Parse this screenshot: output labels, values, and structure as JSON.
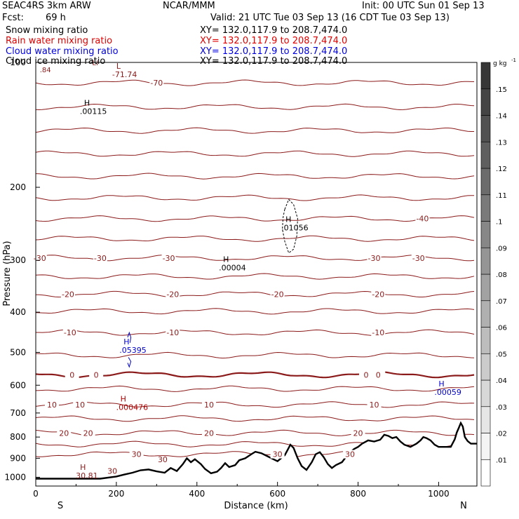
{
  "header": {
    "model": "SEAC4RS  3km ARW",
    "org": "NCAR/MMM",
    "init": "Init: 00 UTC Sun 01 Sep 13",
    "fcst_label": "Fcst:",
    "fcst_value": "69 h",
    "valid": "Valid: 21 UTC Tue 03 Sep 13 (16 CDT Tue 03 Sep 13)"
  },
  "fields": [
    {
      "name": "Snow mixing ratio",
      "xy": "XY= 132.0,117.9 to 208.7,474.0",
      "color": "#000000"
    },
    {
      "name": "Rain water mixing ratio",
      "xy": "XY= 132.0,117.9 to 208.7,474.0",
      "color": "#e00000"
    },
    {
      "name": "Cloud water mixing ratio",
      "xy": "XY= 132.0,117.9 to 208.7,474.0",
      "color": "#0000e0"
    },
    {
      "name": "Cloud ice mixing ratio",
      "xy": "XY= 132.0,117.9 to 208.7,474.0",
      "color": "#000000"
    }
  ],
  "chart_data": {
    "type": "vertical cross-section (contour + shaded)",
    "xlabel": "Distance (km)",
    "ylabel": "Pressure (hPa)",
    "xlim": [
      0,
      1095
    ],
    "ylim": [
      1050,
      100
    ],
    "yscale": "log",
    "x_ticks": [
      0,
      200,
      400,
      600,
      800,
      1000
    ],
    "y_ticks": [
      200,
      300,
      400,
      500,
      600,
      700,
      800,
      900,
      1000
    ],
    "y_top_label": "100",
    "endpoint_left": "S",
    "endpoint_right": "N",
    "colorbar": {
      "unit": "g kg",
      "unit_exp": "-1",
      "ticks": [
        ".01",
        ".02",
        ".03",
        ".04",
        ".05",
        ".06",
        ".07",
        ".08",
        ".09",
        ".1",
        ".11",
        ".12",
        ".13",
        ".14",
        ".15"
      ],
      "colors": [
        "#ffffff",
        "#f4f4f4",
        "#e6e6e6",
        "#d8d8d8",
        "#cbcbcb",
        "#bdbdbd",
        "#b0b0b0",
        "#a2a2a2",
        "#959595",
        "#878787",
        "#7a7a7a",
        "#6c6c6c",
        "#5f5f5f",
        "#515151",
        "#444444",
        "#373737"
      ]
    },
    "temperature_contour_color": "#8b1a1a",
    "temperature_contours": [
      {
        "value": -70,
        "p": 112,
        "labels": [
          {
            "x": 300,
            "text": "-70"
          }
        ]
      },
      {
        "value": -65,
        "p": 128,
        "labels": []
      },
      {
        "value": -60,
        "p": 146,
        "labels": []
      },
      {
        "value": -55,
        "p": 166,
        "labels": []
      },
      {
        "value": -50,
        "p": 188,
        "labels": []
      },
      {
        "value": -45,
        "p": 212,
        "labels": []
      },
      {
        "value": -40,
        "p": 238,
        "labels": [
          {
            "x": 960,
            "text": "-40"
          }
        ]
      },
      {
        "value": -35,
        "p": 266,
        "labels": []
      },
      {
        "value": -30,
        "p": 296,
        "labels": [
          {
            "x": 10,
            "text": "-30"
          },
          {
            "x": 160,
            "text": "-30"
          },
          {
            "x": 330,
            "text": "-30"
          },
          {
            "x": 840,
            "text": "-30"
          },
          {
            "x": 950,
            "text": "-30"
          }
        ]
      },
      {
        "value": -25,
        "p": 328,
        "labels": []
      },
      {
        "value": -20,
        "p": 362,
        "labels": [
          {
            "x": 80,
            "text": "-20"
          },
          {
            "x": 340,
            "text": "-20"
          },
          {
            "x": 600,
            "text": "-20"
          },
          {
            "x": 850,
            "text": "-20"
          }
        ]
      },
      {
        "value": -15,
        "p": 398,
        "labels": []
      },
      {
        "value": -10,
        "p": 448,
        "labels": [
          {
            "x": 85,
            "text": "-10"
          },
          {
            "x": 340,
            "text": "-10"
          },
          {
            "x": 850,
            "text": "-10"
          }
        ]
      },
      {
        "value": -5,
        "p": 508,
        "labels": []
      },
      {
        "value": 0,
        "p": 566,
        "labels": [
          {
            "x": 90,
            "text": "0"
          },
          {
            "x": 150,
            "text": "0"
          },
          {
            "x": 820,
            "text": "0"
          },
          {
            "x": 850,
            "text": "0"
          }
        ]
      },
      {
        "value": 5,
        "p": 612,
        "labels": []
      },
      {
        "value": 10,
        "p": 668,
        "labels": [
          {
            "x": 40,
            "text": "10"
          },
          {
            "x": 110,
            "text": "10"
          },
          {
            "x": 430,
            "text": "10"
          },
          {
            "x": 840,
            "text": "10"
          }
        ]
      },
      {
        "value": 15,
        "p": 722,
        "labels": []
      },
      {
        "value": 20,
        "p": 782,
        "labels": [
          {
            "x": 70,
            "text": "20"
          },
          {
            "x": 130,
            "text": "20"
          },
          {
            "x": 430,
            "text": "20"
          },
          {
            "x": 800,
            "text": "20"
          }
        ]
      },
      {
        "value": 25,
        "p": 832,
        "labels": []
      },
      {
        "value": 30,
        "p": 880,
        "labels": [
          {
            "x": 250,
            "text": "30"
          },
          {
            "x": 600,
            "text": "30"
          },
          {
            "x": 780,
            "text": "30"
          }
        ]
      }
    ],
    "extra_labels": [
      {
        "text": "30",
        "x": 315,
        "p": 905
      },
      {
        "text": "30",
        "x": 190,
        "p": 965
      }
    ],
    "markers": [
      {
        "letter": "H",
        "value": ".00115",
        "x": 120,
        "p": 130,
        "color": "#000000"
      },
      {
        "letter": "H",
        "value": ".01056",
        "x": 620,
        "p": 248,
        "color": "#000000"
      },
      {
        "letter": "H",
        "value": ".00004",
        "x": 465,
        "p": 310,
        "color": "#000000"
      },
      {
        "letter": "H",
        "value": ".05395",
        "x": 218,
        "p": 490,
        "color": "#0000d0"
      },
      {
        "letter": "H",
        "value": ".00059",
        "x": 1000,
        "p": 618,
        "color": "#0000d0"
      },
      {
        "letter": "H",
        "value": ".000476",
        "x": 210,
        "p": 672,
        "color": "#b00000"
      },
      {
        "letter": "H",
        "value": "30.81",
        "x": 110,
        "p": 983,
        "color": "#8b1a1a"
      },
      {
        "letter": "L",
        "value": "-71.74",
        "x": 200,
        "p": 106,
        "color": "#8b1a1a"
      }
    ],
    "top_strip_texts": [
      {
        "text": ".84",
        "x": 10,
        "p": 104
      },
      {
        "text": "LI",
        "x": 140,
        "p": 100
      }
    ],
    "terrain": {
      "color": "#000000",
      "points": [
        [
          0,
          1008
        ],
        [
          50,
          1008
        ],
        [
          100,
          1008
        ],
        [
          160,
          1008
        ],
        [
          200,
          996
        ],
        [
          220,
          985
        ],
        [
          240,
          975
        ],
        [
          260,
          962
        ],
        [
          280,
          958
        ],
        [
          300,
          968
        ],
        [
          320,
          975
        ],
        [
          335,
          950
        ],
        [
          350,
          966
        ],
        [
          365,
          930
        ],
        [
          375,
          900
        ],
        [
          385,
          920
        ],
        [
          395,
          905
        ],
        [
          410,
          930
        ],
        [
          420,
          955
        ],
        [
          435,
          978
        ],
        [
          450,
          970
        ],
        [
          460,
          950
        ],
        [
          470,
          925
        ],
        [
          480,
          945
        ],
        [
          495,
          935
        ],
        [
          505,
          910
        ],
        [
          520,
          900
        ],
        [
          535,
          880
        ],
        [
          545,
          868
        ],
        [
          560,
          875
        ],
        [
          575,
          890
        ],
        [
          590,
          905
        ],
        [
          600,
          915
        ],
        [
          610,
          898
        ],
        [
          618,
          885
        ],
        [
          625,
          860
        ],
        [
          632,
          835
        ],
        [
          640,
          850
        ],
        [
          650,
          900
        ],
        [
          660,
          940
        ],
        [
          672,
          960
        ],
        [
          685,
          920
        ],
        [
          695,
          880
        ],
        [
          705,
          870
        ],
        [
          715,
          895
        ],
        [
          725,
          930
        ],
        [
          735,
          950
        ],
        [
          745,
          935
        ],
        [
          760,
          920
        ],
        [
          775,
          880
        ],
        [
          790,
          855
        ],
        [
          800,
          845
        ],
        [
          810,
          830
        ],
        [
          825,
          815
        ],
        [
          840,
          820
        ],
        [
          855,
          812
        ],
        [
          865,
          790
        ],
        [
          875,
          795
        ],
        [
          885,
          805
        ],
        [
          895,
          800
        ],
        [
          905,
          820
        ],
        [
          915,
          835
        ],
        [
          930,
          845
        ],
        [
          945,
          830
        ],
        [
          955,
          815
        ],
        [
          962,
          800
        ],
        [
          970,
          805
        ],
        [
          980,
          815
        ],
        [
          990,
          835
        ],
        [
          1000,
          845
        ],
        [
          1030,
          845
        ],
        [
          1040,
          810
        ],
        [
          1045,
          780
        ],
        [
          1050,
          760
        ],
        [
          1055,
          740
        ],
        [
          1060,
          755
        ],
        [
          1065,
          800
        ],
        [
          1072,
          818
        ],
        [
          1080,
          830
        ],
        [
          1095,
          830
        ]
      ]
    },
    "dashed_cloud_ice": {
      "color": "#000000",
      "points": [
        [
          618,
          226
        ],
        [
          628,
          214
        ],
        [
          640,
          220
        ],
        [
          650,
          238
        ],
        [
          648,
          262
        ],
        [
          640,
          282
        ],
        [
          628,
          288
        ],
        [
          618,
          270
        ],
        [
          612,
          252
        ],
        [
          614,
          236
        ],
        [
          618,
          226
        ]
      ]
    },
    "cloud_water_blue": {
      "color": "#0000d0",
      "points": [
        [
          228,
          460
        ],
        [
          232,
          448
        ],
        [
          236,
          460
        ],
        [
          234,
          474
        ]
      ]
    },
    "cloud_water_blue2": {
      "color": "#0000d0",
      "points": [
        [
          230,
          514
        ],
        [
          236,
          526
        ],
        [
          232,
          542
        ],
        [
          228,
          530
        ]
      ]
    }
  }
}
